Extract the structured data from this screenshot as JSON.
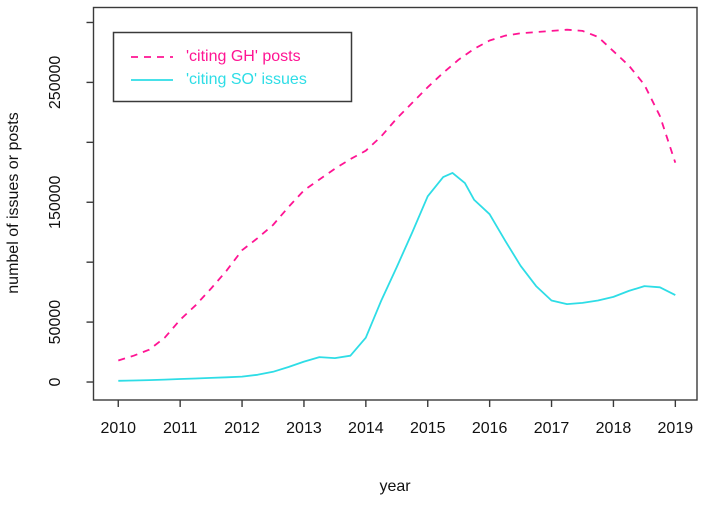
{
  "figure": {
    "background": "#ffffff",
    "border_color": "#3a3a3a",
    "text_color": "#111111"
  },
  "labels": {
    "x_axis": "year",
    "y_axis": "numbel of issues or posts"
  },
  "legend": {
    "items": [
      {
        "label": "'citing GH' posts",
        "color": "#ff1493",
        "style": "dashed"
      },
      {
        "label": "'citing SO' issues",
        "color": "#2edde6",
        "style": "solid"
      }
    ]
  },
  "chart_data": {
    "type": "line",
    "title": "",
    "xlabel": "year",
    "ylabel": "numbel of issues or posts",
    "xlim": [
      2009.6,
      2019.35
    ],
    "ylim": [
      -15000,
      312500
    ],
    "grid": false,
    "legend_position": "top-left-inside",
    "x_ticks": [
      {
        "v": 2010,
        "label": "2010"
      },
      {
        "v": 2011,
        "label": "2011"
      },
      {
        "v": 2012,
        "label": "2012"
      },
      {
        "v": 2013,
        "label": "2013"
      },
      {
        "v": 2014,
        "label": "2014"
      },
      {
        "v": 2015,
        "label": "2015"
      },
      {
        "v": 2016,
        "label": "2016"
      },
      {
        "v": 2017,
        "label": "2017"
      },
      {
        "v": 2018,
        "label": "2018"
      },
      {
        "v": 2019,
        "label": "2019"
      }
    ],
    "y_ticks": [
      {
        "v": 0,
        "label": "0"
      },
      {
        "v": 50000,
        "label": "50000"
      },
      {
        "v": 100000,
        "label": ""
      },
      {
        "v": 150000,
        "label": "150000"
      },
      {
        "v": 200000,
        "label": ""
      },
      {
        "v": 250000,
        "label": "250000"
      },
      {
        "v": 300000,
        "label": ""
      }
    ],
    "series": [
      {
        "name": "'citing GH' posts",
        "color": "#ff1493",
        "style": "dashed",
        "x": [
          2010.0,
          2010.25,
          2010.5,
          2010.75,
          2011.0,
          2011.25,
          2011.5,
          2011.75,
          2012.0,
          2012.25,
          2012.5,
          2012.75,
          2013.0,
          2013.25,
          2013.5,
          2013.75,
          2014.0,
          2014.25,
          2014.5,
          2014.75,
          2015.0,
          2015.25,
          2015.5,
          2015.75,
          2016.0,
          2016.25,
          2016.5,
          2016.75,
          2017.0,
          2017.25,
          2017.5,
          2017.75,
          2018.0,
          2018.25,
          2018.5,
          2018.75,
          2019.0
        ],
        "y": [
          18000,
          22000,
          27000,
          37000,
          52000,
          64000,
          78000,
          93000,
          110000,
          120000,
          131000,
          146000,
          160000,
          169000,
          178000,
          186000,
          193000,
          205000,
          220000,
          233000,
          246000,
          258000,
          269000,
          278000,
          285000,
          289000,
          291000,
          292000,
          293000,
          294000,
          293000,
          288000,
          276000,
          264000,
          248000,
          222000,
          183000
        ]
      },
      {
        "name": "'citing SO' issues",
        "color": "#2edde6",
        "style": "solid",
        "x": [
          2010.0,
          2010.25,
          2010.5,
          2010.75,
          2011.0,
          2011.25,
          2011.5,
          2011.75,
          2012.0,
          2012.25,
          2012.5,
          2012.75,
          2013.0,
          2013.25,
          2013.5,
          2013.75,
          2014.0,
          2014.25,
          2014.5,
          2014.75,
          2015.0,
          2015.25,
          2015.4,
          2015.6,
          2015.75,
          2016.0,
          2016.25,
          2016.5,
          2016.75,
          2017.0,
          2017.25,
          2017.5,
          2017.75,
          2018.0,
          2018.25,
          2018.5,
          2018.75,
          2019.0
        ],
        "y": [
          1000,
          1300,
          1600,
          2000,
          2500,
          2900,
          3400,
          3900,
          4500,
          6000,
          8500,
          12500,
          17000,
          20800,
          20000,
          22000,
          37000,
          68000,
          96000,
          125000,
          155000,
          171000,
          174500,
          166000,
          152000,
          140000,
          118000,
          97000,
          80000,
          68000,
          65000,
          66000,
          68000,
          71000,
          76000,
          80000,
          79000,
          72500
        ]
      }
    ]
  }
}
